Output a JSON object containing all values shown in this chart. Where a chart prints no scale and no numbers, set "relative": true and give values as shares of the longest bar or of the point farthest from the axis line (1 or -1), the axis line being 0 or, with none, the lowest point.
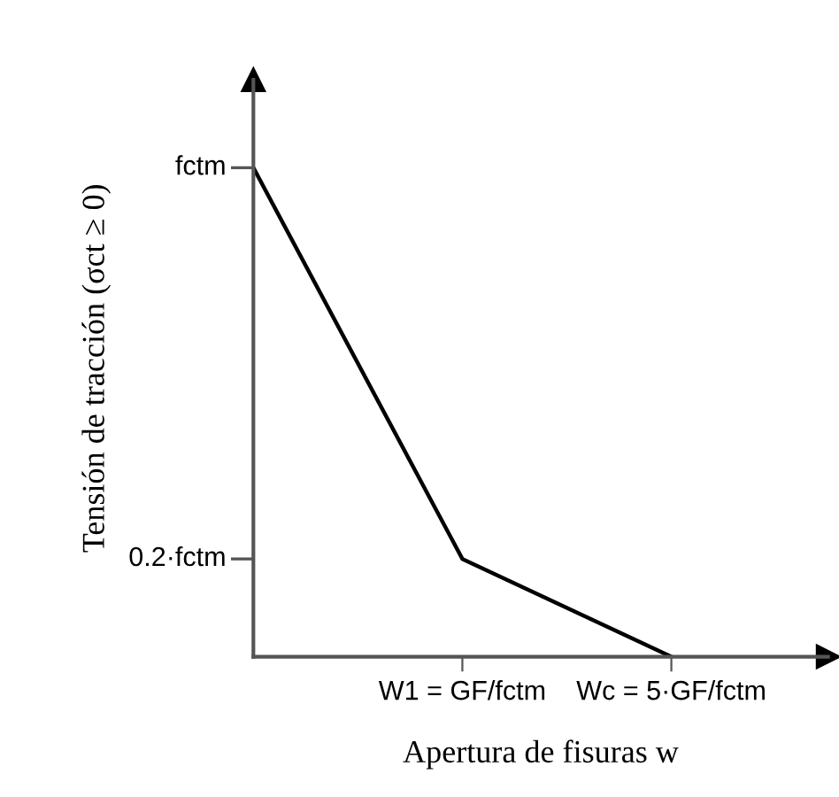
{
  "chart_data": {
    "type": "line",
    "xlabel": "Apertura de fisuras w",
    "ylabel": "Tensión de tracción (σct ≥ 0)",
    "categories": [
      null,
      "W1 = GF/fctm",
      "Wc = 5·GF/fctm"
    ],
    "series": [
      {
        "color": "#000000",
        "values": [
          1,
          0.2,
          0
        ]
      }
    ],
    "relative": true,
    "annotations": [
      "fctm",
      "0.2·fctm"
    ],
    "grid": false,
    "legend": false,
    "marker": "none",
    "line_style": "solid"
  }
}
